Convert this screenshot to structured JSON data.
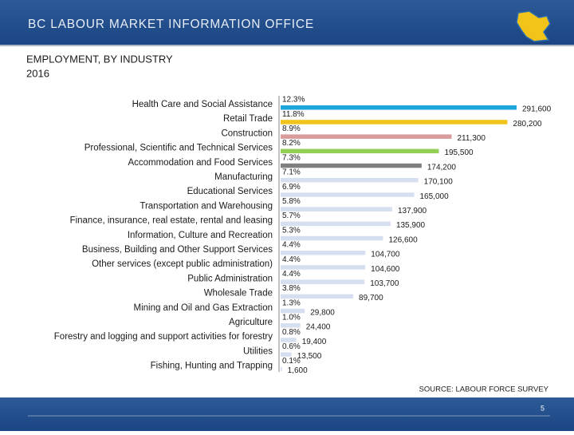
{
  "header": {
    "title": "BC LABOUR MARKET INFORMATION OFFICE"
  },
  "chart_data": {
    "type": "bar",
    "orientation": "horizontal",
    "title": "EMPLOYMENT, BY INDUSTRY",
    "subtitle": "2016",
    "categories": [
      "Health Care and Social Assistance",
      "Retail Trade",
      "Construction",
      "Professional, Scientific and Technical Services",
      "Accommodation and Food Services",
      "Manufacturing",
      "Educational Services",
      "Transportation and Warehousing",
      "Finance, insurance, real estate, rental and leasing",
      "Information, Culture and Recreation",
      "Business, Building and Other Support Services",
      "Other services (except public administration)",
      "Public Administration",
      "Wholesale Trade",
      "Mining and Oil and Gas Extraction",
      "Agriculture",
      "Forestry and logging and support activities for forestry",
      "Utilities",
      "Fishing, Hunting and Trapping"
    ],
    "values": [
      291600,
      280200,
      211300,
      195500,
      174200,
      170100,
      165000,
      137900,
      135900,
      126600,
      104700,
      104600,
      103700,
      89700,
      29800,
      24400,
      19400,
      13500,
      1600
    ],
    "value_labels": [
      "291,600",
      "280,200",
      "211,300",
      "195,500",
      "174,200",
      "170,100",
      "165,000",
      "137,900",
      "135,900",
      "126,600",
      "104,700",
      "104,600",
      "103,700",
      "89,700",
      "29,800",
      "24,400",
      "19,400",
      "13,500",
      "1,600"
    ],
    "shares": [
      12.3,
      11.8,
      8.9,
      8.2,
      7.3,
      7.1,
      6.9,
      5.8,
      5.7,
      5.3,
      4.4,
      4.4,
      4.4,
      3.8,
      1.3,
      1.0,
      0.8,
      0.6,
      0.1
    ],
    "share_labels": [
      "12.3%",
      "11.8%",
      "8.9%",
      "8.2%",
      "7.3%",
      "7.1%",
      "6.9%",
      "5.8%",
      "5.7%",
      "5.3%",
      "4.4%",
      "4.4%",
      "4.4%",
      "3.8%",
      "1.3%",
      "1.0%",
      "0.8%",
      "0.6%",
      "0.1%"
    ],
    "colors": [
      "#1ea6da",
      "#f2c318",
      "#d99c9c",
      "#93cf55",
      "#7f7f7f",
      "#d6dff0",
      "#d6dff0",
      "#d6dff0",
      "#d6dff0",
      "#d6dff0",
      "#d6dff0",
      "#d6dff0",
      "#d6dff0",
      "#d6dff0",
      "#d6dff0",
      "#d6dff0",
      "#d6dff0",
      "#d6dff0",
      "#d6dff0"
    ],
    "source": "SOURCE: LABOUR FORCE SURVEY"
  },
  "footer": {
    "page_number": "5"
  }
}
